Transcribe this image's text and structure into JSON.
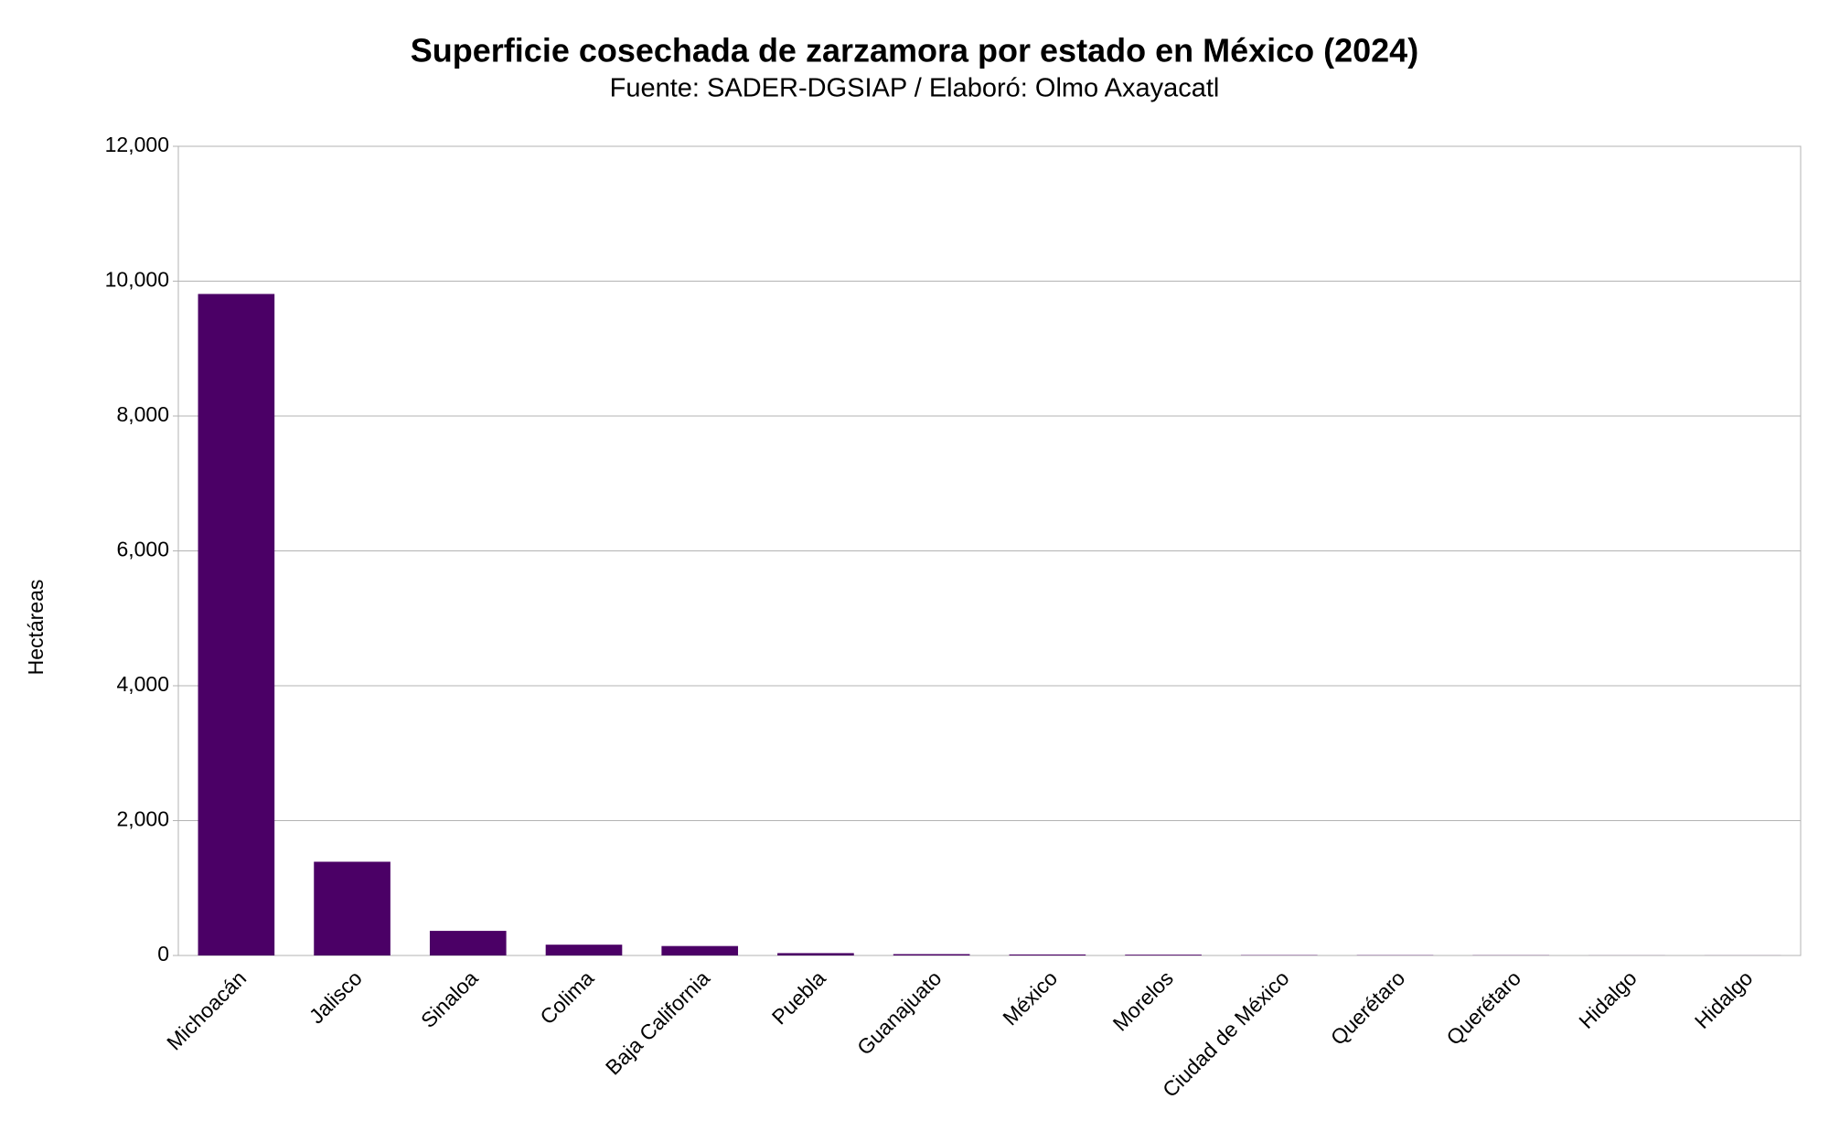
{
  "chart_data": {
    "type": "bar",
    "title": "Superficie cosechada de zarzamora por estado en México (2024)",
    "subtitle": "Fuente: SADER-DGSIAP / Elaboró: Olmo Axayacatl",
    "y_label": "Hectáreas",
    "categories": [
      "Michoacán",
      "Jalisco",
      "Sinaloa",
      "Colima",
      "Baja California",
      "Puebla",
      "Guanajuato",
      "México",
      "Morelos",
      "Ciudad de México",
      "Querétaro",
      "Querétaro",
      "Hidalgo",
      "Hidalgo"
    ],
    "values": [
      9810,
      1390,
      365,
      160,
      140,
      35,
      20,
      15,
      12,
      5,
      4,
      3,
      1,
      1
    ],
    "color": "#4b0066",
    "ylim": [
      0,
      12000
    ],
    "yticks": [
      0,
      {
        "value": 2000,
        "label": "2,000"
      },
      {
        "value": 4000,
        "label": "4,000"
      },
      {
        "value": 6000,
        "label": "6,000"
      },
      {
        "value": 8000,
        "label": "8,000"
      },
      {
        "value": 10000,
        "label": "10,000"
      },
      {
        "value": 12000,
        "label": "12,000"
      }
    ],
    "grid": true
  }
}
